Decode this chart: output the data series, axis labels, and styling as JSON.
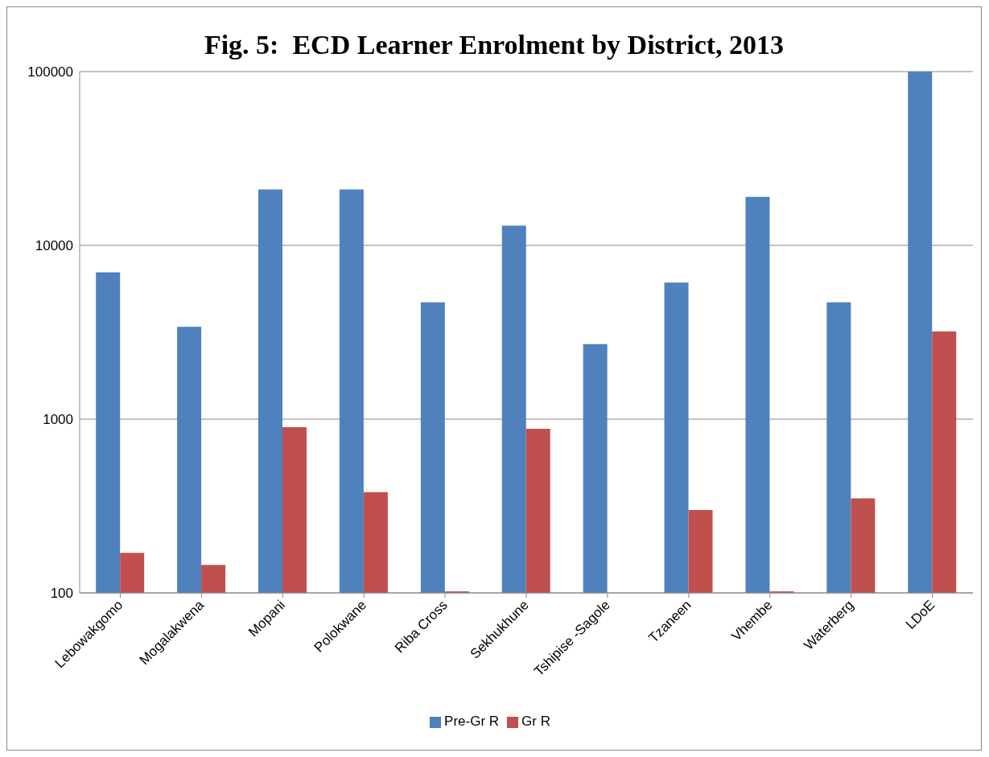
{
  "chart_data": {
    "type": "bar",
    "title": "Fig. 5:  ECD Learner Enrolment by District, 2013",
    "categories": [
      "Lebowakgomo",
      "Mogalakwena",
      "Mopani",
      "Polokwane",
      "Riba Cross",
      "Sekhukhune",
      "Tshipise -Sagole",
      "Tzaneen",
      "Vhembe",
      "Waterberg",
      "LDoE"
    ],
    "series": [
      {
        "name": "Pre-Gr R",
        "color": "#4f81bd",
        "values": [
          7000,
          3400,
          21000,
          21000,
          4700,
          13000,
          2700,
          6100,
          19000,
          4700,
          100000
        ]
      },
      {
        "name": "Gr R",
        "color": "#c0504d",
        "values": [
          170,
          145,
          900,
          380,
          102,
          880,
          null,
          300,
          102,
          350,
          3200
        ]
      }
    ],
    "log": true,
    "ylim": [
      100,
      100000
    ],
    "yticks": [
      100,
      1000,
      10000,
      100000
    ],
    "grid": "y",
    "legend": "bottom"
  }
}
